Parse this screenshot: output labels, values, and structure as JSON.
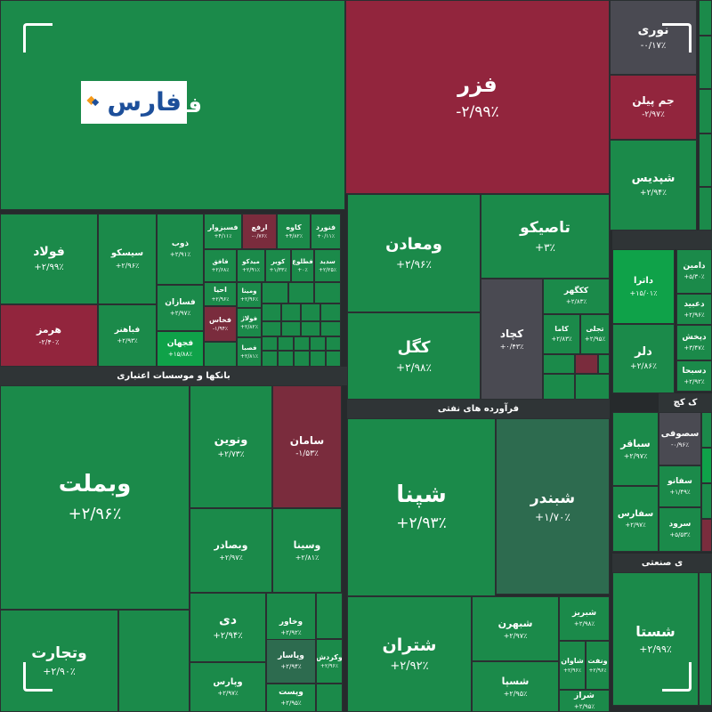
{
  "colors": {
    "strong_up": "#0fa249",
    "up": "#1b8a4a",
    "muted_up": "#2d6b4f",
    "neutral": "#4a4a52",
    "down": "#7a2c3d",
    "strong_down": "#92253d",
    "sector_bar": "#2f3436",
    "background": "#262a2c"
  },
  "logo": {
    "text": "فارس",
    "icon": "fars-diamond-logo-icon"
  },
  "chart_data": {
    "type": "heatmap",
    "sectors": [
      {
        "id": "banks",
        "label": "بانکها و موسسات اعتباری"
      },
      {
        "id": "refinery",
        "label": "فرآورده های نفتی"
      },
      {
        "id": "sector_right_top",
        "label": ""
      },
      {
        "id": "sector_right_mid",
        "label": "ک کچ"
      },
      {
        "id": "sector_right_bottom",
        "label": "ی صنعتی"
      }
    ],
    "tiles": [
      {
        "name": "فملی",
        "change": "",
        "color": "up"
      },
      {
        "name": "فزر",
        "change": "-۲/۹۹٪",
        "color": "strong_down"
      },
      {
        "name": "نوری",
        "change": "-۰/۱۷٪",
        "color": "neutral"
      },
      {
        "name": "جم پیلن",
        "change": "-۲/۹۷٪",
        "color": "strong_down"
      },
      {
        "name": "شپدیس",
        "change": "+۲/۹۴٪",
        "color": "up"
      },
      {
        "name": "فولاد",
        "change": "+۲/۹۹٪",
        "color": "up"
      },
      {
        "name": "هرمز",
        "change": "-۲/۴۰٪",
        "color": "strong_down"
      },
      {
        "name": "سیسکو",
        "change": "+۲/۹۶٪",
        "color": "up"
      },
      {
        "name": "فباهنر",
        "change": "+۲/۹۳٪",
        "color": "up"
      },
      {
        "name": "ذوب",
        "change": "+۲/۹۱٪",
        "color": "up"
      },
      {
        "name": "فسازان",
        "change": "+۲/۹۷٪",
        "color": "up"
      },
      {
        "name": "فجهان",
        "change": "+۱۵/۸۸٪",
        "color": "strong_up"
      },
      {
        "name": "فسبزوار",
        "change": "+۴/۱۱٪",
        "color": "up"
      },
      {
        "name": "ارفع",
        "change": "-۰/۷۶٪",
        "color": "down"
      },
      {
        "name": "کاوه",
        "change": "+۴/۸۲٪",
        "color": "up"
      },
      {
        "name": "فنورد",
        "change": "+۰/۱۱٪",
        "color": "up"
      },
      {
        "name": "فافق",
        "change": "+۲/۶۸٪",
        "color": "up"
      },
      {
        "name": "میدکو",
        "change": "+۲/۹۱٪",
        "color": "up"
      },
      {
        "name": "کویر",
        "change": "+۱/۳۳٪",
        "color": "up"
      },
      {
        "name": "فطلوع",
        "change": "+۰٪",
        "color": "up"
      },
      {
        "name": "سدید",
        "change": "+۲/۲۵٪",
        "color": "up"
      },
      {
        "name": "احیا",
        "change": "+۲/۹۶٪",
        "color": "up"
      },
      {
        "name": "فخاس",
        "change": "-۱/۹۴٪",
        "color": "down"
      },
      {
        "name": "ومینا",
        "change": "+۲/۹۶٪",
        "color": "up"
      },
      {
        "name": "فولاژ",
        "change": "+۲/۸۲٪",
        "color": "up"
      },
      {
        "name": "فصبا",
        "change": "+۲/۸۱٪",
        "color": "up"
      },
      {
        "name": "ومعادن",
        "change": "+۲/۹۶٪",
        "color": "up"
      },
      {
        "name": "تاصیکو",
        "change": "+۳٪",
        "color": "up"
      },
      {
        "name": "کگل",
        "change": "+۲/۹۸٪",
        "color": "up"
      },
      {
        "name": "کچاد",
        "change": "+۰/۴۳٪",
        "color": "neutral"
      },
      {
        "name": "ککگهر",
        "change": "+۲/۸۳٪",
        "color": "up"
      },
      {
        "name": "کاما",
        "change": "+۲/۸۳٪",
        "color": "up"
      },
      {
        "name": "تجلی",
        "change": "+۲/۹۵٪",
        "color": "up"
      },
      {
        "name": "داترا",
        "change": "+۱۵/۰۱٪",
        "color": "strong_up"
      },
      {
        "name": "دامین",
        "change": "+۵/۳۰٪",
        "color": "up"
      },
      {
        "name": "دعبید",
        "change": "+۲/۹۶٪",
        "color": "up"
      },
      {
        "name": "دلر",
        "change": "+۲/۸۶٪",
        "color": "up"
      },
      {
        "name": "دپخش",
        "change": "+۳/۴۷٪",
        "color": "up"
      },
      {
        "name": "دسبحا",
        "change": "+۲/۹۲٪",
        "color": "up"
      },
      {
        "name": "وبملت",
        "change": "+۲/۹۶٪",
        "color": "up"
      },
      {
        "name": "ونوین",
        "change": "+۲/۷۳٪",
        "color": "up"
      },
      {
        "name": "سامان",
        "change": "-۱/۵۳٪",
        "color": "down"
      },
      {
        "name": "وبصادر",
        "change": "+۲/۹۷٪",
        "color": "up"
      },
      {
        "name": "وسینا",
        "change": "+۲/۸۱٪",
        "color": "up"
      },
      {
        "name": "دی",
        "change": "+۲/۹۴٪",
        "color": "up"
      },
      {
        "name": "وخاور",
        "change": "+۲/۹۲٪",
        "color": "up"
      },
      {
        "name": "وتجارت",
        "change": "+۲/۹۰٪",
        "color": "up"
      },
      {
        "name": "وپارس",
        "change": "+۲/۹۷٪",
        "color": "up"
      },
      {
        "name": "وپاسار",
        "change": "+۲/۹۴٪",
        "color": "muted_up"
      },
      {
        "name": "وکردش",
        "change": "+۲/۹۶٪",
        "color": "up"
      },
      {
        "name": "وپست",
        "change": "+۲/۹۵٪",
        "color": "up"
      },
      {
        "name": "شپنا",
        "change": "+۲/۹۳٪",
        "color": "up"
      },
      {
        "name": "شبندر",
        "change": "+۱/۷۰٪",
        "color": "muted_up"
      },
      {
        "name": "شتران",
        "change": "+۲/۹۲٪",
        "color": "up"
      },
      {
        "name": "شبهرن",
        "change": "+۲/۹۷٪",
        "color": "up"
      },
      {
        "name": "شبریز",
        "change": "+۲/۹۸٪",
        "color": "up"
      },
      {
        "name": "شاوان",
        "change": "+۲/۹۶٪",
        "color": "up"
      },
      {
        "name": "ونفت",
        "change": "+۲/۹۶٪",
        "color": "up"
      },
      {
        "name": "شسپا",
        "change": "+۲/۹۵٪",
        "color": "up"
      },
      {
        "name": "شراز",
        "change": "+۲/۹۵٪",
        "color": "up"
      },
      {
        "name": "شستا",
        "change": "+۲/۹۹٪",
        "color": "up"
      },
      {
        "name": "سصوفی",
        "change": "-۰/۹۶٪",
        "color": "neutral"
      },
      {
        "name": "سباقر",
        "change": "+۲/۹۷٪",
        "color": "up"
      },
      {
        "name": "سفانو",
        "change": "+۱/۴۹٪",
        "color": "up"
      },
      {
        "name": "سفارس",
        "change": "+۲/۹۷٪",
        "color": "up"
      },
      {
        "name": "سرود",
        "change": "+۵/۵۳٪",
        "color": "up"
      }
    ]
  }
}
